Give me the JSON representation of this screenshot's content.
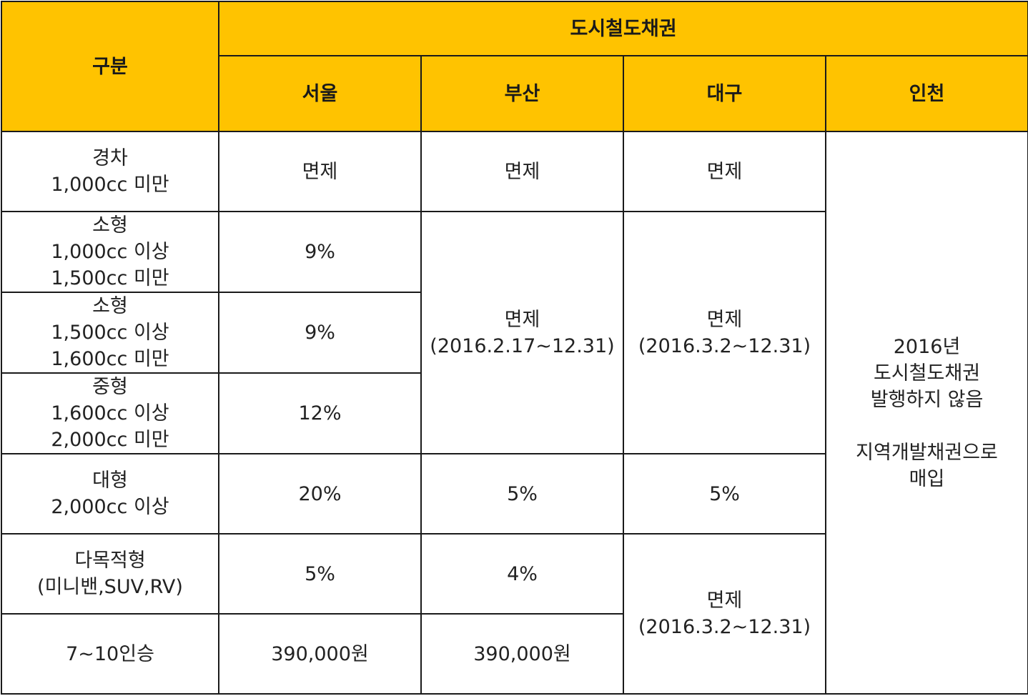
{
  "header": {
    "category": "구분",
    "bond": "도시철도채권",
    "regions": [
      "서울",
      "부산",
      "대구",
      "인천"
    ]
  },
  "rows": [
    {
      "label": "경차\n1,000cc 미만",
      "seoul": "면제",
      "busan": "면제",
      "daegu": "면제"
    },
    {
      "label": "소형\n1,000cc 이상\n1,500cc 미만",
      "seoul": "9%"
    },
    {
      "label": "소형\n1,500cc 이상\n1,600cc 미만",
      "seoul": "9%"
    },
    {
      "label": "중형\n1,600cc 이상\n2,000cc 미만",
      "seoul": "12%"
    },
    {
      "label": "대형\n2,000cc 이상",
      "seoul": "20%",
      "busan": "5%",
      "daegu": "5%"
    },
    {
      "label": "다목적형\n(미니밴,SUV,RV)",
      "seoul": "5%",
      "busan": "4%"
    },
    {
      "label": "7~10인승",
      "seoul": "390,000원",
      "busan": "390,000원"
    }
  ],
  "merged": {
    "busan_small_mid": "면제\n(2016.2.17~12.31)",
    "daegu_small_mid": "면제\n(2016.3.2~12.31)",
    "daegu_multi": "면제\n(2016.3.2~12.31)",
    "incheon": "2016년\n도시철도채권\n발행하지 않음\n\n지역개발채권으로\n매입"
  },
  "colors": {
    "header_bg": "#ffc300",
    "border": "#1a1a1a"
  }
}
